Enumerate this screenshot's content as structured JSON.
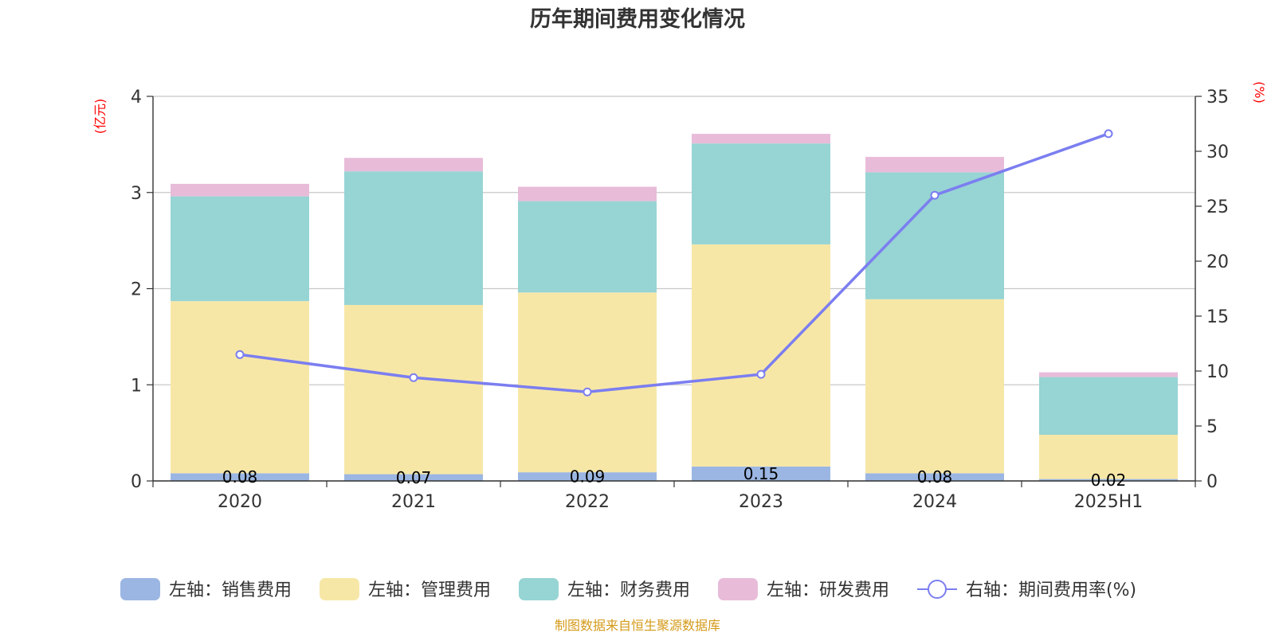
{
  "chart_data": {
    "type": "bar",
    "title": "历年期间费用变化情况",
    "stacked": true,
    "categories": [
      "2020",
      "2021",
      "2022",
      "2023",
      "2024",
      "2025H1"
    ],
    "y_left": {
      "unit_label": "(亿元)",
      "range": [
        0,
        4
      ],
      "ticks": [
        "0",
        "1",
        "2",
        "3",
        "4"
      ]
    },
    "y_right": {
      "unit_label": "(%)",
      "range": [
        0,
        35
      ],
      "ticks": [
        "0",
        "5",
        "10",
        "15",
        "20",
        "25",
        "30",
        "35"
      ]
    },
    "grid": true,
    "legend_position": "bottom",
    "series": [
      {
        "name": "左轴：销售费用",
        "axis": "left",
        "type": "bar",
        "color": "#9bb6e2",
        "values": [
          0.08,
          0.07,
          0.09,
          0.15,
          0.08,
          0.02
        ],
        "labels": [
          "0.08",
          "0.07",
          "0.09",
          "0.15",
          "0.08",
          "0.02"
        ]
      },
      {
        "name": "左轴：管理费用",
        "axis": "left",
        "type": "bar",
        "color": "#f7e7a7",
        "values": [
          1.79,
          1.76,
          1.87,
          2.31,
          1.81,
          0.46
        ]
      },
      {
        "name": "左轴：财务费用",
        "axis": "left",
        "type": "bar",
        "color": "#97d4d4",
        "values": [
          1.09,
          1.39,
          0.95,
          1.05,
          1.32,
          0.6
        ]
      },
      {
        "name": "左轴：研发费用",
        "axis": "left",
        "type": "bar",
        "color": "#e8bcd9",
        "values": [
          0.13,
          0.14,
          0.15,
          0.1,
          0.16,
          0.05
        ]
      },
      {
        "name": "右轴：期间费用率(%)",
        "axis": "right",
        "type": "line",
        "color": "#7b7ef0",
        "values": [
          11.5,
          9.4,
          8.1,
          9.7,
          26.0,
          31.6
        ]
      }
    ]
  },
  "footer": {
    "source": "制图数据来自恒生聚源数据库"
  }
}
